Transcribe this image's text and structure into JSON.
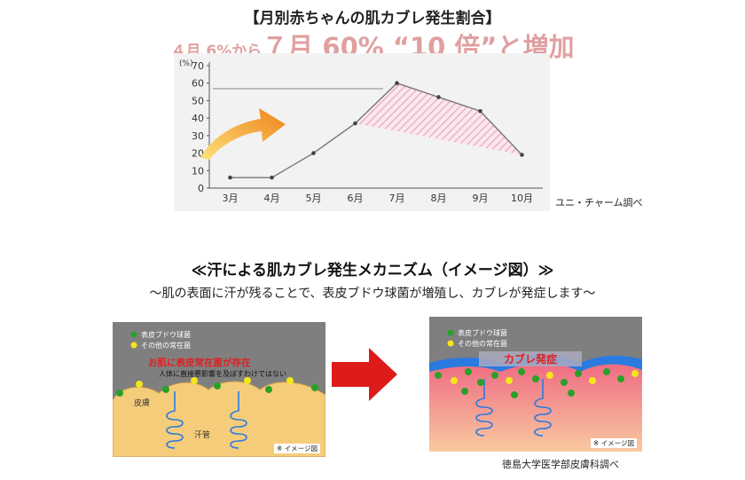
{
  "title": "【月別赤ちゃんの肌カブレ発生割合】",
  "headline": {
    "part1": "４月 6%から",
    "part2": "７月 60% “10 倍”と増加"
  },
  "chart_data": {
    "type": "line",
    "categories": [
      "3月",
      "4月",
      "5月",
      "6月",
      "7月",
      "8月",
      "9月",
      "10月"
    ],
    "values": [
      6,
      6,
      20,
      37,
      60,
      52,
      44,
      19
    ],
    "ylim": [
      0,
      70
    ],
    "yticks": [
      0,
      10,
      20,
      30,
      40,
      50,
      60,
      70
    ],
    "ylabel": "(%)",
    "xlabel": "",
    "grid": false,
    "hatched_region": [
      "6月",
      "10月"
    ],
    "colors": {
      "line": "#777777",
      "hatch": "#e8a6bc",
      "arrow": "#f08a1a"
    }
  },
  "source_note": "ユニ・チャーム調べ",
  "mechanism": {
    "title": "≪汗による肌カブレ発生メカニズム（イメージ図）≫",
    "subtitle": "～肌の表面に汗が残ることで、表皮ブドウ球菌が増殖し、カブレが発症します～",
    "left_panel": {
      "legend1": "表皮ブドウ球菌",
      "legend2": "その他の常在菌",
      "headline": "お肌に表皮常在菌が存在",
      "note": "人体に直接悪影響を及ぼすわけではない",
      "skin_label": "皮膚",
      "sweat_label": "汗管",
      "image_note": "※ イメージ図"
    },
    "right_panel": {
      "legend1": "表皮ブドウ球菌",
      "legend2": "その他の常在菌",
      "headline": "カブレ発症",
      "image_note": "※ イメージ図"
    },
    "source_note": "徳島大学医学部皮膚科調べ",
    "colors": {
      "green": "#2aa02a",
      "yellow": "#f4e61a",
      "red_text": "#e02020",
      "arrow": "#dd1b1b",
      "skin": "#f5cc7a",
      "inflamed": "#ef6c83",
      "sweat": "#2a7ae0"
    }
  }
}
